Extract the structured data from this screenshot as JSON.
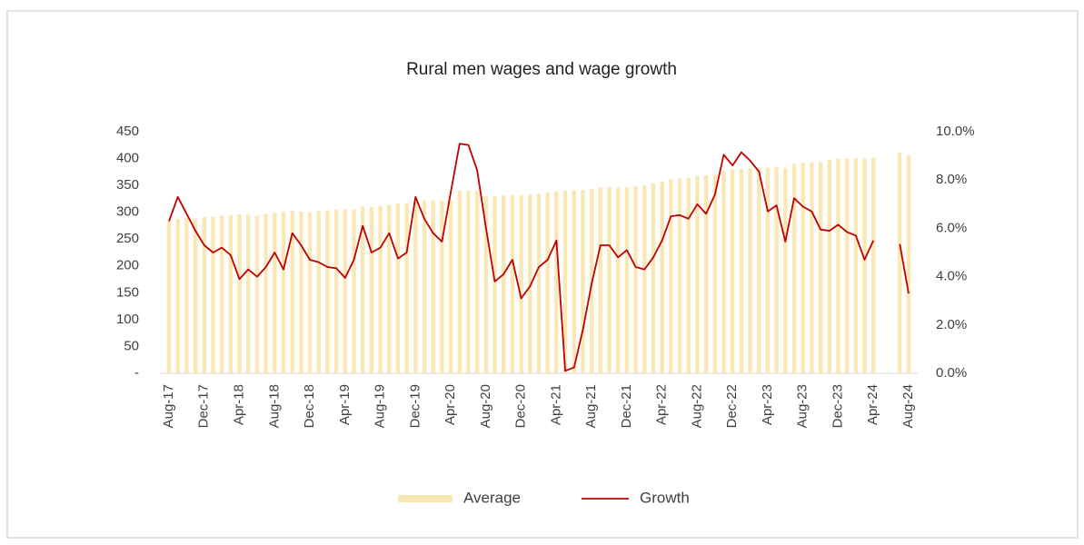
{
  "chart_data": {
    "type": "bar",
    "title": "Rural men wages and wage growth",
    "categories": [
      "Aug-17",
      null,
      null,
      null,
      "Dec-17",
      null,
      null,
      null,
      "Apr-18",
      null,
      null,
      null,
      "Aug-18",
      null,
      null,
      null,
      "Dec-18",
      null,
      null,
      null,
      "Apr-19",
      null,
      null,
      null,
      "Aug-19",
      null,
      null,
      null,
      "Dec-19",
      null,
      null,
      null,
      "Apr-20",
      null,
      null,
      null,
      "Aug-20",
      null,
      null,
      null,
      "Dec-20",
      null,
      null,
      null,
      "Apr-21",
      null,
      null,
      null,
      "Aug-21",
      null,
      null,
      null,
      "Dec-21",
      null,
      null,
      null,
      "Apr-22",
      null,
      null,
      null,
      "Aug-22",
      null,
      null,
      null,
      "Dec-22",
      null,
      null,
      null,
      "Apr-23",
      null,
      null,
      null,
      "Aug-23",
      null,
      null,
      null,
      "Dec-23",
      null,
      null,
      null,
      "Apr-24",
      null,
      null,
      null,
      "Aug-24"
    ],
    "series": [
      {
        "name": "Average",
        "type": "bar",
        "color": "#f9e8b4",
        "values": [
          285,
          288,
          290,
          288,
          291,
          292,
          294,
          295,
          296,
          297,
          294,
          297,
          299,
          301,
          303,
          301,
          300,
          302,
          304,
          305,
          306,
          305,
          311,
          310,
          312,
          314,
          317,
          316,
          320,
          322,
          322,
          322,
          322,
          340,
          340,
          340,
          330,
          330,
          331,
          332,
          331,
          333,
          335,
          337,
          339,
          340,
          341,
          342,
          344,
          346,
          347,
          346,
          347,
          348,
          350,
          354,
          358,
          361,
          363,
          364,
          368,
          369,
          370,
          377,
          380,
          381,
          382,
          383,
          383,
          385,
          382,
          390,
          392,
          393,
          394,
          398,
          400,
          400,
          401,
          400,
          402,
          null,
          null,
          411,
          406
        ]
      },
      {
        "name": "Growth",
        "type": "line",
        "axis": "y2",
        "color": "#c00000",
        "values": [
          6.3,
          7.3,
          6.6,
          5.9,
          5.3,
          5.0,
          5.2,
          4.9,
          3.9,
          4.3,
          4.0,
          4.4,
          5.0,
          4.3,
          5.8,
          5.3,
          4.7,
          4.6,
          4.4,
          4.35,
          3.95,
          4.7,
          6.1,
          5.0,
          5.2,
          5.8,
          4.75,
          5.0,
          7.3,
          6.4,
          5.8,
          5.45,
          7.5,
          9.5,
          9.45,
          8.4,
          6.0,
          3.8,
          4.1,
          4.7,
          3.1,
          3.6,
          4.4,
          4.7,
          5.5,
          0.1,
          0.25,
          1.8,
          3.7,
          5.3,
          5.3,
          4.8,
          5.1,
          4.4,
          4.3,
          4.8,
          5.5,
          6.5,
          6.55,
          6.4,
          7.0,
          6.6,
          7.4,
          9.05,
          8.6,
          9.15,
          8.8,
          8.35,
          6.7,
          6.95,
          5.45,
          7.25,
          6.9,
          6.7,
          5.95,
          5.9,
          6.15,
          5.85,
          5.7,
          4.7,
          5.5,
          null,
          null,
          5.35,
          3.3
        ]
      }
    ],
    "ylim": [
      0,
      450
    ],
    "yticks": [
      {
        "value": 0,
        "label": "-"
      },
      50,
      100,
      150,
      200,
      250,
      300,
      350,
      400,
      450
    ],
    "y2lim": [
      0,
      10
    ],
    "y2ticks": [
      {
        "value": 0,
        "label": "0.0%"
      },
      {
        "value": 2,
        "label": "2.0%"
      },
      {
        "value": 4,
        "label": "4.0%"
      },
      {
        "value": 6,
        "label": "6.0%"
      },
      {
        "value": 8,
        "label": "8.0%"
      },
      {
        "value": 10,
        "label": "10.0%"
      }
    ],
    "legend": "bottom"
  }
}
